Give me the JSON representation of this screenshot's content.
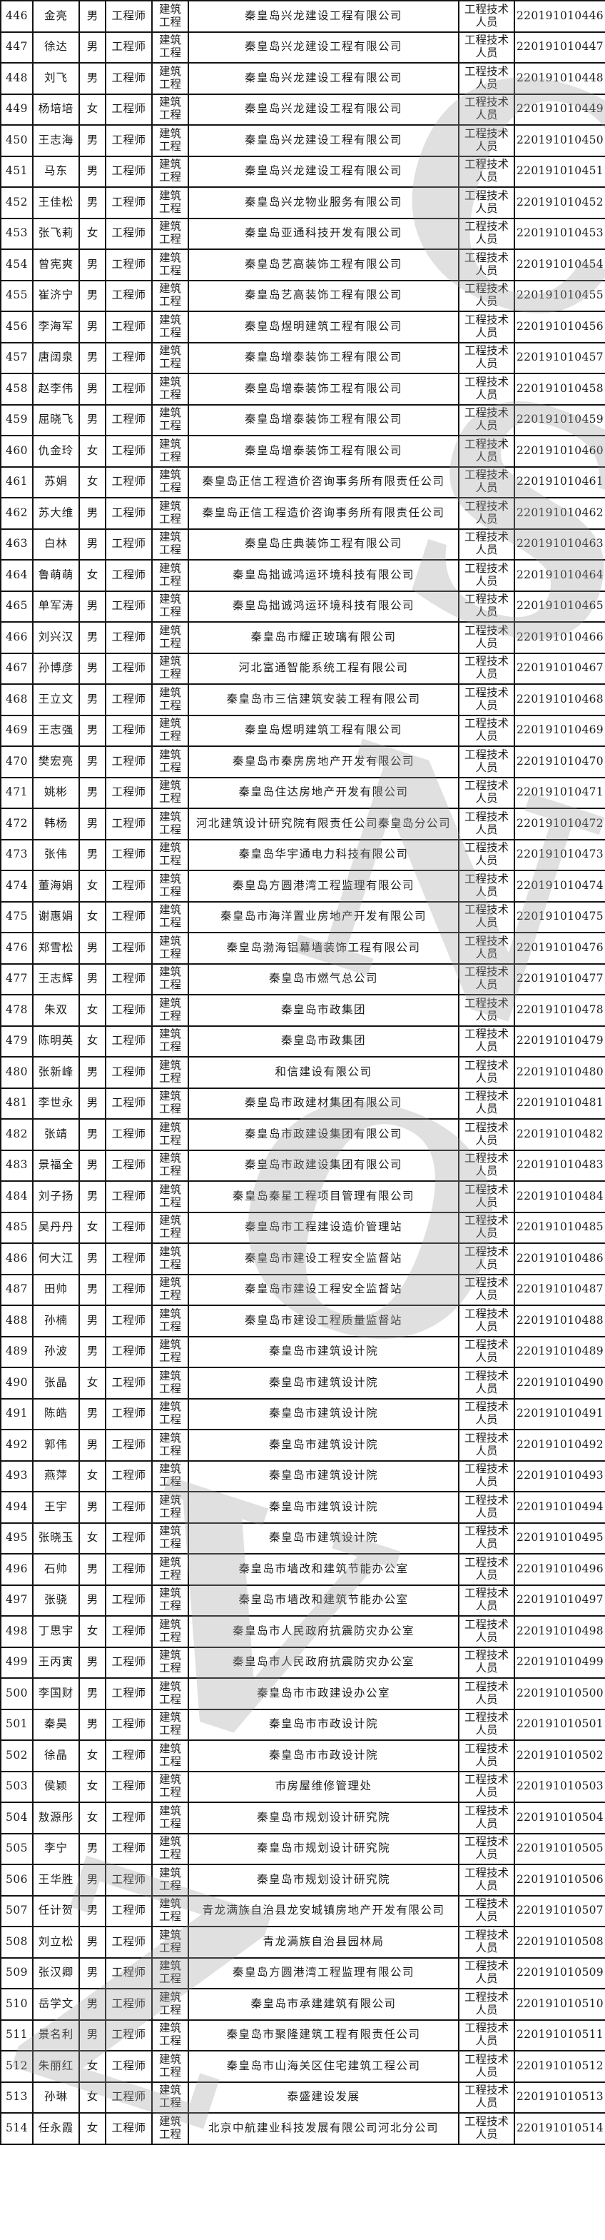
{
  "watermark": {
    "glyphs": [
      "C",
      "S",
      "N",
      "O",
      "V",
      "Z"
    ],
    "color": "#9a9a9a"
  },
  "table": {
    "shared": {
      "title": "工程师",
      "major": "建筑工程",
      "category": "工程技术人员"
    },
    "rows": [
      [
        "446",
        "金亮",
        "男",
        "秦皇岛兴龙建设工程有限公司",
        "220191010446"
      ],
      [
        "447",
        "徐达",
        "男",
        "秦皇岛兴龙建设工程有限公司",
        "220191010447"
      ],
      [
        "448",
        "刘飞",
        "男",
        "秦皇岛兴龙建设工程有限公司",
        "220191010448"
      ],
      [
        "449",
        "杨培培",
        "女",
        "秦皇岛兴龙建设工程有限公司",
        "220191010449"
      ],
      [
        "450",
        "王志海",
        "男",
        "秦皇岛兴龙建设工程有限公司",
        "220191010450"
      ],
      [
        "451",
        "马东",
        "男",
        "秦皇岛兴龙建设工程有限公司",
        "220191010451"
      ],
      [
        "452",
        "王佳松",
        "男",
        "秦皇岛兴龙物业服务有限公司",
        "220191010452"
      ],
      [
        "453",
        "张飞莉",
        "女",
        "秦皇岛亚通科技开发有限公司",
        "220191010453"
      ],
      [
        "454",
        "曾宪爽",
        "男",
        "秦皇岛艺高装饰工程有限公司",
        "220191010454"
      ],
      [
        "455",
        "崔济宁",
        "男",
        "秦皇岛艺高装饰工程有限公司",
        "220191010455"
      ],
      [
        "456",
        "李海军",
        "男",
        "秦皇岛煜明建筑工程有限公司",
        "220191010456"
      ],
      [
        "457",
        "唐阔泉",
        "男",
        "秦皇岛增泰装饰工程有限公司",
        "220191010457"
      ],
      [
        "458",
        "赵李伟",
        "男",
        "秦皇岛增泰装饰工程有限公司",
        "220191010458"
      ],
      [
        "459",
        "屈晓飞",
        "男",
        "秦皇岛增泰装饰工程有限公司",
        "220191010459"
      ],
      [
        "460",
        "仇金玲",
        "女",
        "秦皇岛增泰装饰工程有限公司",
        "220191010460"
      ],
      [
        "461",
        "苏娟",
        "女",
        "秦皇岛正信工程造价咨询事务所有限责任公司",
        "220191010461"
      ],
      [
        "462",
        "苏大维",
        "男",
        "秦皇岛正信工程造价咨询事务所有限责任公司",
        "220191010462"
      ],
      [
        "463",
        "白林",
        "男",
        "秦皇岛庄典装饰工程有限公司",
        "220191010463"
      ],
      [
        "464",
        "鲁萌萌",
        "女",
        "秦皇岛拙诚鸿运环境科技有限公司",
        "220191010464"
      ],
      [
        "465",
        "单军涛",
        "男",
        "秦皇岛拙诚鸿运环境科技有限公司",
        "220191010465"
      ],
      [
        "466",
        "刘兴汉",
        "男",
        "秦皇岛市耀正玻璃有限公司",
        "220191010466"
      ],
      [
        "467",
        "孙博彦",
        "男",
        "河北富通智能系统工程有限公司",
        "220191010467"
      ],
      [
        "468",
        "王立文",
        "男",
        "秦皇岛市三信建筑安装工程有限公司",
        "220191010468"
      ],
      [
        "469",
        "王志强",
        "男",
        "秦皇岛煜明建筑工程有限公司",
        "220191010469"
      ],
      [
        "470",
        "樊宏亮",
        "男",
        "秦皇岛市秦房房地产开发有限公司",
        "220191010470"
      ],
      [
        "471",
        "姚彬",
        "男",
        "秦皇岛住达房地产开发有限公司",
        "220191010471"
      ],
      [
        "472",
        "韩杨",
        "男",
        "河北建筑设计研究院有限责任公司秦皇岛分公司",
        "220191010472"
      ],
      [
        "473",
        "张伟",
        "男",
        "秦皇岛华宇通电力科技有限公司",
        "220191010473"
      ],
      [
        "474",
        "董海娟",
        "女",
        "秦皇岛方圆港湾工程监理有限公司",
        "220191010474"
      ],
      [
        "475",
        "谢惠娟",
        "女",
        "秦皇岛市海洋置业房地产开发有限公司",
        "220191010475"
      ],
      [
        "476",
        "郑雪松",
        "男",
        "秦皇岛渤海铝幕墙装饰工程有限公司",
        "220191010476"
      ],
      [
        "477",
        "王志辉",
        "男",
        "秦皇岛市燃气总公司",
        "220191010477"
      ],
      [
        "478",
        "朱双",
        "女",
        "秦皇岛市政集团",
        "220191010478"
      ],
      [
        "479",
        "陈明英",
        "女",
        "秦皇岛市政集团",
        "220191010479"
      ],
      [
        "480",
        "张新峰",
        "男",
        "和信建设有限公司",
        "220191010480"
      ],
      [
        "481",
        "李世永",
        "男",
        "秦皇岛市政建材集团有限公司",
        "220191010481"
      ],
      [
        "482",
        "张靖",
        "男",
        "秦皇岛市政建设集团有限公司",
        "220191010482"
      ],
      [
        "483",
        "景福全",
        "男",
        "秦皇岛市政建设集团有限公司",
        "220191010483"
      ],
      [
        "484",
        "刘子扬",
        "男",
        "秦皇岛秦星工程项目管理有限公司",
        "220191010484"
      ],
      [
        "485",
        "吴丹丹",
        "女",
        "秦皇岛市工程建设造价管理站",
        "220191010485"
      ],
      [
        "486",
        "何大江",
        "男",
        "秦皇岛市建设工程安全监督站",
        "220191010486"
      ],
      [
        "487",
        "田帅",
        "男",
        "秦皇岛市建设工程安全监督站",
        "220191010487"
      ],
      [
        "488",
        "孙楠",
        "男",
        "秦皇岛市建设工程质量监督站",
        "220191010488"
      ],
      [
        "489",
        "孙波",
        "男",
        "秦皇岛市建筑设计院",
        "220191010489"
      ],
      [
        "490",
        "张晶",
        "女",
        "秦皇岛市建筑设计院",
        "220191010490"
      ],
      [
        "491",
        "陈皓",
        "男",
        "秦皇岛市建筑设计院",
        "220191010491"
      ],
      [
        "492",
        "郭伟",
        "男",
        "秦皇岛市建筑设计院",
        "220191010492"
      ],
      [
        "493",
        "燕萍",
        "女",
        "秦皇岛市建筑设计院",
        "220191010493"
      ],
      [
        "494",
        "王宇",
        "男",
        "秦皇岛市建筑设计院",
        "220191010494"
      ],
      [
        "495",
        "张晓玉",
        "女",
        "秦皇岛市建筑设计院",
        "220191010495"
      ],
      [
        "496",
        "石帅",
        "男",
        "秦皇岛市墙改和建筑节能办公室",
        "220191010496"
      ],
      [
        "497",
        "张骁",
        "男",
        "秦皇岛市墙改和建筑节能办公室",
        "220191010497"
      ],
      [
        "498",
        "丁思宇",
        "女",
        "秦皇岛市人民政府抗震防灾办公室",
        "220191010498"
      ],
      [
        "499",
        "王丙寅",
        "男",
        "秦皇岛市人民政府抗震防灾办公室",
        "220191010499"
      ],
      [
        "500",
        "李国财",
        "男",
        "秦皇岛市市政建设办公室",
        "220191010500"
      ],
      [
        "501",
        "秦昊",
        "男",
        "秦皇岛市市政设计院",
        "220191010501"
      ],
      [
        "502",
        "徐晶",
        "女",
        "秦皇岛市市政设计院",
        "220191010502"
      ],
      [
        "503",
        "侯颖",
        "女",
        "市房屋维修管理处",
        "220191010503"
      ],
      [
        "504",
        "敖源彤",
        "女",
        "秦皇岛市规划设计研究院",
        "220191010504"
      ],
      [
        "505",
        "李宁",
        "男",
        "秦皇岛市规划设计研究院",
        "220191010505"
      ],
      [
        "506",
        "王华胜",
        "男",
        "秦皇岛市规划设计研究院",
        "220191010506"
      ],
      [
        "507",
        "任计贺",
        "男",
        "青龙满族自治县龙安城镇房地产开发有限公司",
        "220191010507"
      ],
      [
        "508",
        "刘立松",
        "男",
        "青龙满族自治县园林局",
        "220191010508"
      ],
      [
        "509",
        "张汉卿",
        "男",
        "秦皇岛方圆港湾工程监理有限公司",
        "220191010509"
      ],
      [
        "510",
        "岳学文",
        "男",
        "秦皇岛市承建建筑有限公司",
        "220191010510"
      ],
      [
        "511",
        "景名利",
        "男",
        "秦皇岛市聚隆建筑工程有限责任公司",
        "220191010511"
      ],
      [
        "512",
        "朱丽红",
        "女",
        "秦皇岛市山海关区住宅建筑工程公司",
        "220191010512"
      ],
      [
        "513",
        "孙琳",
        "女",
        "泰盛建设发展",
        "220191010513"
      ],
      [
        "514",
        "任永霞",
        "女",
        "北京中航建业科技发展有限公司河北分公司",
        "220191010514"
      ]
    ]
  }
}
